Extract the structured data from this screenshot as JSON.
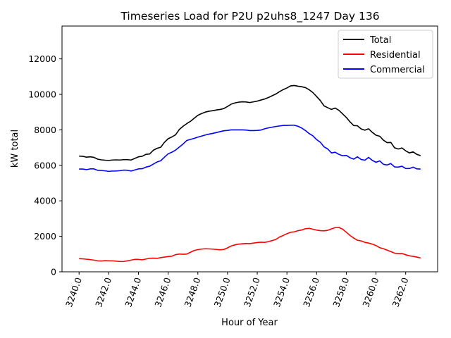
{
  "chart_data": {
    "type": "line",
    "title": "Timeseries Load for P2U p2uhs8_1247  Day 136",
    "xlabel": "Hour of Year",
    "ylabel": "kW total",
    "xlim": [
      3238.85,
      3264.15
    ],
    "ylim": [
      0,
      13850
    ],
    "xticks": [
      3240,
      3242,
      3244,
      3246,
      3248,
      3250,
      3252,
      3254,
      3256,
      3258,
      3260,
      3262
    ],
    "xtick_labels": [
      "3240.0",
      "3242.0",
      "3244.0",
      "3246.0",
      "3248.0",
      "3250.0",
      "3252.0",
      "3254.0",
      "3256.0",
      "3258.0",
      "3260.0",
      "3262.0"
    ],
    "yticks": [
      0,
      2000,
      4000,
      6000,
      8000,
      10000,
      12000
    ],
    "ytick_labels": [
      "0",
      "2000",
      "4000",
      "6000",
      "8000",
      "10000",
      "12000"
    ],
    "legend_position": "top-right",
    "x_start": 3240,
    "x_step": 0.25,
    "series": [
      {
        "name": "Total",
        "color": "#000000",
        "values": [
          6520,
          6510,
          6460,
          6480,
          6450,
          6350,
          6310,
          6290,
          6280,
          6300,
          6310,
          6300,
          6320,
          6320,
          6300,
          6390,
          6480,
          6510,
          6620,
          6640,
          6850,
          6960,
          7020,
          7300,
          7500,
          7600,
          7720,
          8020,
          8200,
          8350,
          8480,
          8650,
          8820,
          8920,
          9000,
          9050,
          9080,
          9120,
          9150,
          9200,
          9320,
          9450,
          9520,
          9560,
          9580,
          9570,
          9540,
          9580,
          9620,
          9680,
          9740,
          9820,
          9920,
          10020,
          10150,
          10270,
          10360,
          10480,
          10500,
          10460,
          10430,
          10380,
          10260,
          10100,
          9880,
          9650,
          9350,
          9250,
          9150,
          9230,
          9100,
          8900,
          8700,
          8450,
          8240,
          8230,
          8050,
          7980,
          8060,
          7860,
          7700,
          7640,
          7420,
          7280,
          7290,
          6990,
          6920,
          6980,
          6820,
          6700,
          6760,
          6620,
          6550
        ]
      },
      {
        "name": "Residential",
        "color": "#ff0000",
        "values": [
          740,
          730,
          710,
          690,
          660,
          620,
          610,
          630,
          620,
          620,
          600,
          580,
          580,
          620,
          660,
          700,
          700,
          680,
          720,
          760,
          770,
          760,
          800,
          830,
          860,
          880,
          970,
          1000,
          990,
          1000,
          1100,
          1200,
          1250,
          1280,
          1300,
          1290,
          1280,
          1260,
          1240,
          1260,
          1350,
          1460,
          1520,
          1560,
          1580,
          1600,
          1590,
          1620,
          1650,
          1670,
          1660,
          1700,
          1760,
          1820,
          1960,
          2050,
          2150,
          2230,
          2250,
          2320,
          2360,
          2430,
          2450,
          2400,
          2350,
          2320,
          2310,
          2340,
          2420,
          2490,
          2500,
          2400,
          2230,
          2050,
          1900,
          1780,
          1740,
          1660,
          1620,
          1560,
          1480,
          1360,
          1300,
          1220,
          1140,
          1050,
          1030,
          1030,
          960,
          900,
          870,
          830,
          780
        ]
      },
      {
        "name": "Commercial",
        "color": "#0000ff",
        "values": [
          5790,
          5790,
          5760,
          5800,
          5800,
          5720,
          5710,
          5690,
          5660,
          5680,
          5680,
          5700,
          5730,
          5720,
          5680,
          5740,
          5800,
          5810,
          5900,
          5950,
          6070,
          6190,
          6260,
          6460,
          6650,
          6740,
          6860,
          7030,
          7200,
          7400,
          7460,
          7520,
          7590,
          7650,
          7710,
          7760,
          7800,
          7850,
          7900,
          7950,
          7970,
          8000,
          8000,
          8000,
          8000,
          7990,
          7960,
          7960,
          7970,
          7990,
          8060,
          8110,
          8150,
          8190,
          8220,
          8250,
          8250,
          8260,
          8260,
          8200,
          8100,
          7960,
          7790,
          7660,
          7450,
          7300,
          7040,
          6920,
          6700,
          6740,
          6620,
          6540,
          6560,
          6430,
          6350,
          6480,
          6330,
          6290,
          6450,
          6280,
          6170,
          6250,
          6060,
          6020,
          6100,
          5910,
          5900,
          5950,
          5820,
          5820,
          5900,
          5800,
          5790
        ]
      }
    ]
  }
}
